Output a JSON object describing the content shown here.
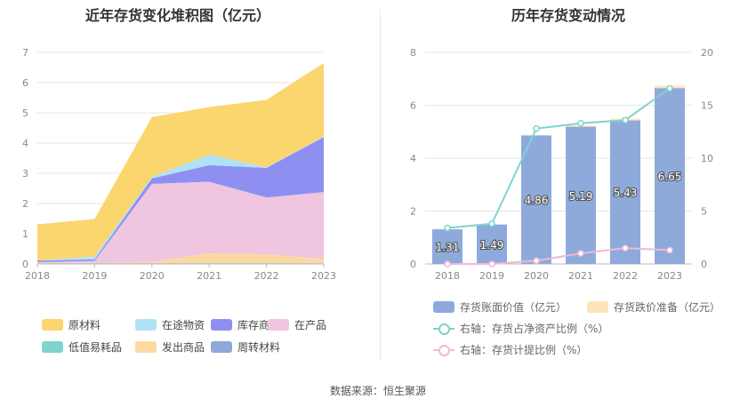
{
  "source_label": "数据来源：恒生聚源",
  "chart_data": [
    {
      "type": "area",
      "title": "近年存货变化堆积图（亿元）",
      "x": [
        "2018",
        "2019",
        "2020",
        "2021",
        "2022",
        "2023"
      ],
      "ylim": [
        0,
        7
      ],
      "yticks": [
        0,
        1,
        2,
        3,
        4,
        5,
        6,
        7
      ],
      "grid": true,
      "legend_position": "bottom",
      "series": [
        {
          "name": "周转材料",
          "color": "#8eaadb",
          "values": [
            0.02,
            0.02,
            0.02,
            0.02,
            0.02,
            0.02
          ]
        },
        {
          "name": "发出商品",
          "color": "#fcd9a0",
          "values": [
            0.02,
            0.02,
            0.05,
            0.33,
            0.3,
            0.15
          ]
        },
        {
          "name": "低值易耗品",
          "color": "#7fd3cf",
          "values": [
            0.0,
            0.0,
            0.0,
            0.0,
            0.0,
            0.0
          ]
        },
        {
          "name": "在产品",
          "color": "#efc5df",
          "values": [
            0.02,
            0.06,
            2.58,
            2.37,
            1.88,
            2.21
          ]
        },
        {
          "name": "库存商品",
          "color": "#8f8ff2",
          "values": [
            0.05,
            0.05,
            0.18,
            0.55,
            0.98,
            1.82
          ]
        },
        {
          "name": "在途物资",
          "color": "#aee2f7",
          "values": [
            0.0,
            0.1,
            0.05,
            0.35,
            0.02,
            0.02
          ]
        },
        {
          "name": "原材料",
          "color": "#fbd56e",
          "values": [
            1.2,
            1.24,
            1.98,
            1.57,
            2.23,
            2.43
          ]
        }
      ],
      "legend_order": [
        "原材料",
        "在途物资",
        "库存商品",
        "在产品",
        "低值易耗品",
        "发出商品",
        "周转材料"
      ]
    },
    {
      "type": "bar",
      "title": "历年存货变动情况",
      "categories": [
        "2018",
        "2019",
        "2020",
        "2021",
        "2022",
        "2023"
      ],
      "ylim_left": [
        0,
        8
      ],
      "yticks_left": [
        0,
        2,
        4,
        6,
        8
      ],
      "ylim_right": [
        0,
        20
      ],
      "yticks_right": [
        0,
        5,
        10,
        15,
        20
      ],
      "grid": true,
      "legend_position": "bottom",
      "series": [
        {
          "name": "存货账面价值（亿元）",
          "kind": "bar",
          "axis": "left",
          "color": "#8eaadb",
          "values": [
            1.31,
            1.49,
            4.86,
            5.19,
            5.43,
            6.65
          ],
          "labels": [
            "1.31",
            "1.49",
            "4.86",
            "5.19",
            "5.43",
            "6.65"
          ]
        },
        {
          "name": "存货跌价准备（亿元）",
          "kind": "bar",
          "axis": "left",
          "color": "#fde3b8",
          "values": [
            0.0,
            0.0,
            0.02,
            0.04,
            0.06,
            0.09
          ]
        },
        {
          "name": "右轴：存货占净资产比例（%）",
          "kind": "line",
          "axis": "right",
          "color": "#7fd3cf",
          "values": [
            3.4,
            3.8,
            12.8,
            13.3,
            13.6,
            16.6
          ]
        },
        {
          "name": "右轴：存货计提比例（%）",
          "kind": "line",
          "axis": "right",
          "color": "#f0b8d8",
          "values": [
            0.0,
            0.0,
            0.3,
            1.0,
            1.5,
            1.3
          ]
        }
      ]
    }
  ]
}
